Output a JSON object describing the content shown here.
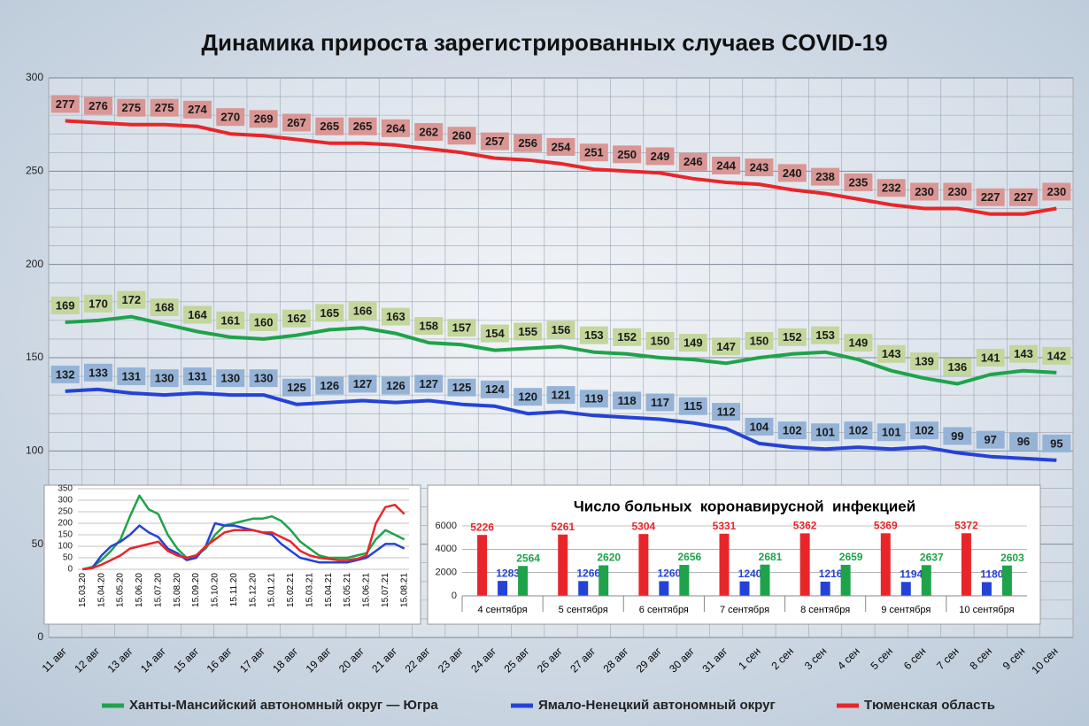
{
  "chart_data": [
    {
      "type": "line",
      "title": "Динамика прироста зарегистрированных случаев COVID-19",
      "categories": [
        "11 авг",
        "12 авг",
        "13 авг",
        "14 авг",
        "15 авг",
        "16 авг",
        "17 авг",
        "18 авг",
        "19 авг",
        "20 авг",
        "21 авг",
        "22 авг",
        "23 авг",
        "24 авг",
        "25 авг",
        "26 авг",
        "27 авг",
        "28 авг",
        "29 авг",
        "30 авг",
        "31 авг",
        "1 сен",
        "2 сен",
        "3 сен",
        "4 сен",
        "5 сен",
        "6 сен",
        "7 сен",
        "8 сен",
        "9 сен",
        "10 сен"
      ],
      "series": [
        {
          "name": "Ханты-Мансийский автономный округ — Югра",
          "color": "#1fa34a",
          "label_fill": "#c3d69b",
          "values": [
            169,
            170,
            172,
            168,
            164,
            161,
            160,
            162,
            165,
            166,
            163,
            158,
            157,
            154,
            155,
            156,
            153,
            152,
            150,
            149,
            147,
            150,
            152,
            153,
            149,
            143,
            139,
            136,
            141,
            143,
            142
          ]
        },
        {
          "name": "Ямало-Ненецкий автономный округ",
          "color": "#2443d6",
          "label_fill": "#95b3d7",
          "values": [
            132,
            133,
            131,
            130,
            131,
            130,
            130,
            125,
            126,
            127,
            126,
            127,
            125,
            124,
            120,
            121,
            119,
            118,
            117,
            115,
            112,
            104,
            102,
            101,
            102,
            101,
            102,
            99,
            97,
            96,
            95
          ]
        },
        {
          "name": "Тюменская область",
          "color": "#e8262a",
          "label_fill": "#d99694",
          "values": [
            277,
            276,
            275,
            275,
            274,
            270,
            269,
            267,
            265,
            265,
            264,
            262,
            260,
            257,
            256,
            254,
            251,
            250,
            249,
            246,
            244,
            243,
            240,
            238,
            235,
            232,
            230,
            230,
            227,
            227,
            230
          ]
        }
      ],
      "ylim": [
        0,
        300
      ],
      "yticks": [
        0,
        50,
        100,
        150,
        200,
        250,
        300
      ],
      "minor_yticks": [
        10,
        20,
        30,
        40,
        60,
        70,
        80,
        90,
        110,
        120,
        130,
        140,
        160,
        170,
        180,
        190,
        210,
        220,
        230,
        240,
        260,
        270,
        280,
        290
      ],
      "grid": true,
      "data_labels": true,
      "legend": "bottom"
    },
    {
      "type": "line",
      "categories": [
        "15.03.20",
        null,
        "15.04.20",
        null,
        "15.05.20",
        null,
        "15.06.20",
        null,
        "15.07.20",
        null,
        "15.08.20",
        null,
        "15.09.20",
        null,
        "15.10.20",
        null,
        "15.11.20",
        null,
        "15.12.20",
        null,
        "15.01.21",
        null,
        "15.02.21",
        null,
        "15.03.21",
        null,
        "15.04.21",
        null,
        "15.05.21",
        null,
        "15.06.21",
        null,
        "15.07.21",
        null,
        "15.08.21"
      ],
      "series": [
        {
          "color": "#1fa34a",
          "values": [
            0,
            10,
            40,
            80,
            130,
            230,
            320,
            260,
            240,
            150,
            90,
            50,
            60,
            90,
            150,
            190,
            200,
            210,
            220,
            220,
            230,
            210,
            170,
            120,
            90,
            60,
            50,
            50,
            50,
            60,
            70,
            130,
            170,
            150,
            130
          ]
        },
        {
          "color": "#2443d6",
          "values": [
            0,
            5,
            60,
            100,
            120,
            150,
            190,
            160,
            140,
            90,
            70,
            40,
            50,
            100,
            200,
            190,
            190,
            180,
            170,
            160,
            150,
            110,
            80,
            50,
            40,
            30,
            30,
            30,
            30,
            40,
            50,
            80,
            110,
            110,
            90
          ]
        },
        {
          "color": "#e8262a",
          "values": [
            0,
            5,
            20,
            40,
            60,
            90,
            100,
            110,
            120,
            80,
            60,
            50,
            60,
            100,
            130,
            160,
            170,
            170,
            170,
            160,
            160,
            140,
            120,
            80,
            60,
            50,
            45,
            40,
            40,
            45,
            60,
            200,
            270,
            280,
            240
          ]
        }
      ],
      "ylim": [
        0,
        350
      ],
      "yticks": [
        0,
        50,
        100,
        150,
        200,
        250,
        300,
        350
      ],
      "grid": true
    },
    {
      "type": "bar",
      "title": "Число больных  коронавирусной  инфекцией",
      "categories": [
        "4 сентября",
        "5 сентября",
        "6 сентября",
        "7 сентября",
        "8 сентября",
        "9 сентября",
        "10 сентября"
      ],
      "series": [
        {
          "color": "#e8262a",
          "values": [
            5226,
            5261,
            5304,
            5331,
            5362,
            5369,
            5372
          ]
        },
        {
          "color": "#2443d6",
          "values": [
            1283,
            1266,
            1260,
            1240,
            1216,
            1194,
            1180
          ]
        },
        {
          "color": "#1fa34a",
          "values": [
            2564,
            2620,
            2656,
            2681,
            2659,
            2637,
            2603
          ]
        }
      ],
      "ylim": [
        0,
        6000
      ],
      "yticks": [
        0,
        2000,
        4000,
        6000
      ],
      "grid": true,
      "data_labels": true
    }
  ]
}
